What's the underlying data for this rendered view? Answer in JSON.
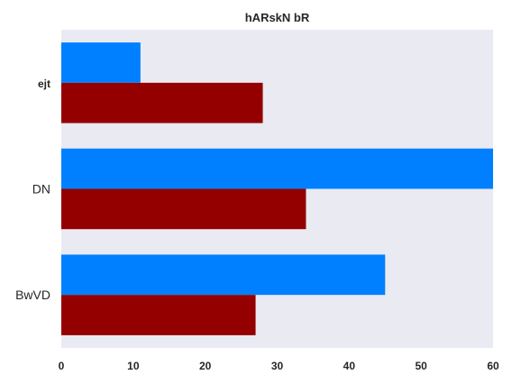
{
  "chart_data": {
    "type": "bar",
    "orientation": "horizontal",
    "title": "hARskN bR",
    "xlabel": "",
    "ylabel": "",
    "categories": [
      "ejt",
      "DN",
      "BwVD"
    ],
    "category_bold": [
      true,
      false,
      false
    ],
    "series": [
      {
        "color": "#0080ff",
        "values": [
          11,
          60,
          45
        ]
      },
      {
        "color": "#940000",
        "values": [
          28,
          34,
          27
        ]
      }
    ],
    "xlim": [
      0,
      60
    ],
    "xticks": [
      "0",
      "10",
      "20",
      "30",
      "40",
      "50",
      "60"
    ],
    "grid": false,
    "legend": "none",
    "background": "#eaeaf2"
  }
}
